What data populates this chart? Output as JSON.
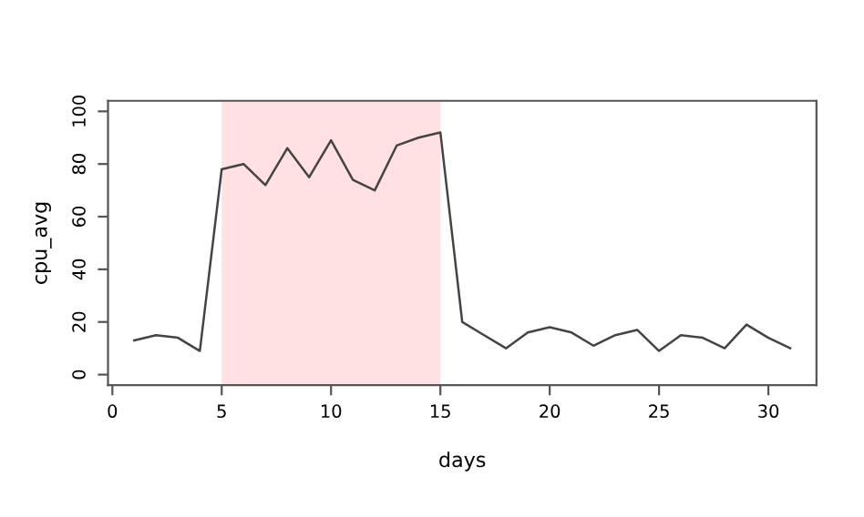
{
  "chart_data": {
    "type": "line",
    "xlabel": "days",
    "ylabel": "cpu_avg",
    "x": [
      1,
      2,
      3,
      4,
      5,
      6,
      7,
      8,
      9,
      10,
      11,
      12,
      13,
      14,
      15,
      16,
      17,
      18,
      19,
      20,
      21,
      22,
      23,
      24,
      25,
      26,
      27,
      28,
      29,
      30,
      31
    ],
    "series": [
      {
        "color": "#444444",
        "values": [
          13,
          15,
          14,
          9,
          78,
          80,
          72,
          86,
          75,
          89,
          74,
          70,
          87,
          90,
          92,
          20,
          15,
          10,
          16,
          18,
          16,
          11,
          15,
          17,
          9,
          15,
          14,
          10,
          19,
          14,
          10
        ]
      }
    ],
    "xlim": [
      -0.2,
      32.2
    ],
    "ylim": [
      -4,
      104
    ],
    "xticks": [
      0,
      5,
      10,
      15,
      20,
      25,
      30
    ],
    "yticks": [
      0,
      20,
      40,
      60,
      80,
      100
    ],
    "bands": [
      {
        "axis": "x",
        "from": 5,
        "to": 15,
        "color": "#ffe0e3"
      }
    ],
    "grid": false,
    "legend": false,
    "marker": "none",
    "line_style": "solid"
  }
}
